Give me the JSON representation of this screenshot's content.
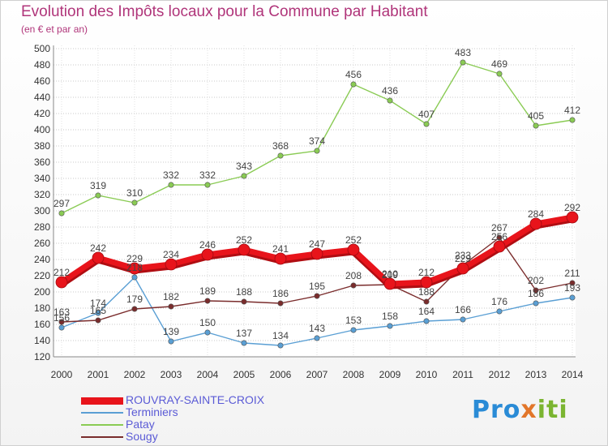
{
  "header": {
    "title": "Evolution des Impôts locaux pour la Commune par Habitant",
    "subtitle": "(en € et par an)"
  },
  "logo": {
    "part1": "Pro",
    "part2": "x",
    "part3": "iti"
  },
  "chart_data": {
    "type": "line",
    "title": "Evolution des Impôts locaux pour la Commune par Habitant",
    "subtitle": "(en € et par an)",
    "xlabel": "",
    "ylabel": "",
    "x": [
      "2000",
      "2001",
      "2002",
      "2003",
      "2004",
      "2005",
      "2006",
      "2007",
      "2008",
      "2009",
      "2010",
      "2011",
      "2012",
      "2013",
      "2014"
    ],
    "ylim": [
      120,
      500
    ],
    "yticks": [
      120,
      140,
      160,
      180,
      200,
      220,
      240,
      260,
      280,
      300,
      320,
      340,
      360,
      380,
      400,
      420,
      440,
      460,
      480,
      500
    ],
    "grid": "horizontal dotted",
    "legend": "bottom-left",
    "series": [
      {
        "name": "ROUVRAY-SAINTE-CROIX",
        "color": "#e8141b",
        "values": [
          212,
          242,
          229,
          234,
          246,
          252,
          241,
          247,
          252,
          210,
          212,
          229,
          256,
          284,
          292
        ]
      },
      {
        "name": "Terminiers",
        "color": "#5a9fd4",
        "values": [
          156,
          174,
          218,
          139,
          150,
          137,
          134,
          143,
          153,
          158,
          164,
          166,
          176,
          186,
          193
        ]
      },
      {
        "name": "Patay",
        "color": "#8acb54",
        "values": [
          297,
          319,
          310,
          332,
          332,
          343,
          368,
          374,
          456,
          436,
          407,
          483,
          469,
          405,
          412
        ]
      },
      {
        "name": "Sougy",
        "color": "#7a2c2c",
        "values": [
          163,
          165,
          179,
          182,
          189,
          188,
          186,
          195,
          208,
          209,
          188,
          233,
          267,
          202,
          211
        ]
      }
    ],
    "data_labels": {
      "ROUVRAY-SAINTE-CROIX": [
        "212",
        "242",
        "229",
        "234",
        "246",
        "252",
        "241",
        "247",
        "252",
        "210",
        "212",
        "229",
        "256",
        "284",
        "292"
      ],
      "Terminiers": [
        "156",
        "174",
        "218",
        "139",
        "150",
        "137",
        "134",
        "143",
        "153",
        "158",
        "164",
        "166",
        "176",
        "186",
        "193"
      ],
      "Patay": [
        "297",
        "319",
        "310",
        "332",
        "332",
        "343",
        "368",
        "374",
        "456",
        "436",
        "407",
        "483",
        "469",
        "405",
        "412"
      ],
      "Sougy": [
        "163",
        "165",
        "179",
        "182",
        "189",
        "188",
        "186",
        "195",
        "208",
        "209",
        "188",
        "233",
        "267",
        "202",
        "211"
      ]
    }
  }
}
